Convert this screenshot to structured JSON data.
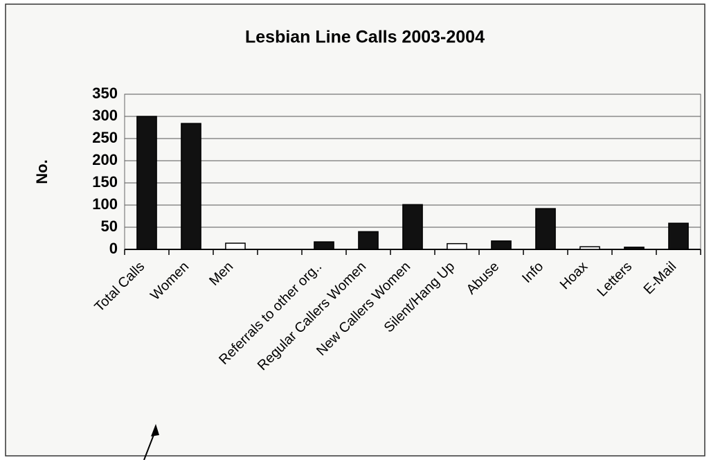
{
  "chart_data": {
    "type": "bar",
    "title": "Lesbian Line Calls 2003-2004",
    "y_label": "No.",
    "categories": [
      "Total Calls",
      "Women",
      "Men",
      null,
      "Referrals to other org..",
      "Regular Callers Women",
      "New Callers Women",
      "Silent/Hang Up",
      "Abuse",
      "Info",
      "Hoax",
      "Letters",
      "E-Mail"
    ],
    "values": [
      300,
      284,
      14,
      0,
      17,
      40,
      101,
      13,
      19,
      92,
      6,
      5,
      59
    ],
    "colors": [
      "#111111",
      "#111111",
      "#ffffff",
      "#111111",
      "#111111",
      "#111111",
      "#111111",
      "#ffffff",
      "#111111",
      "#111111",
      "#ffffff",
      "#111111",
      "#111111"
    ],
    "ylim": [
      0,
      350
    ],
    "yticks": [
      0,
      50,
      100,
      150,
      200,
      250,
      300,
      350
    ],
    "grid": true
  }
}
